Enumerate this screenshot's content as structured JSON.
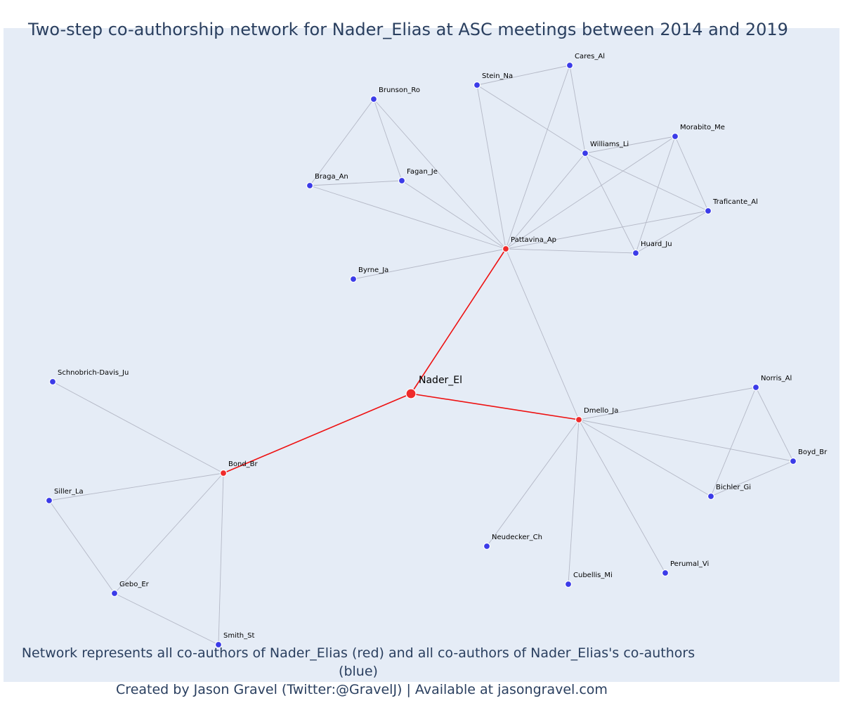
{
  "title": "Two-step co-authorship network for Nader_Elias at ASC meetings between 2014 and 2019",
  "footnote": {
    "line1": "Network represents all co-authors of Nader_Elias (red) and all co-authors of Nader_Elias's co-authors (blue)",
    "line2": "Created by Jason Gravel (Twitter:@GravelJ) | Available at jasongravel.com"
  },
  "colors": {
    "background": "#e5ecf6",
    "ego_node": "#ef2b2b",
    "coauthor_node": "#ef2b2b",
    "second_step_node": "#3b3be8",
    "ego_edge": "#ee1111",
    "other_edge": "#b4b8c6",
    "text": "#2a3f5f"
  },
  "nodes": [
    {
      "id": "Nader_El",
      "label": "Nader_El",
      "group": "ego"
    },
    {
      "id": "Pattavina_Ap",
      "label": "Pattavina_Ap",
      "group": "coauthor"
    },
    {
      "id": "Dmello_Ja",
      "label": "Dmello_Ja",
      "group": "coauthor"
    },
    {
      "id": "Bond_Br",
      "label": "Bond_Br",
      "group": "coauthor"
    },
    {
      "id": "Cares_Al",
      "label": "Cares_Al",
      "group": "second"
    },
    {
      "id": "Stein_Na",
      "label": "Stein_Na",
      "group": "second"
    },
    {
      "id": "Brunson_Ro",
      "label": "Brunson_Ro",
      "group": "second"
    },
    {
      "id": "Morabito_Me",
      "label": "Morabito_Me",
      "group": "second"
    },
    {
      "id": "Williams_Li",
      "label": "Williams_Li",
      "group": "second"
    },
    {
      "id": "Fagan_Je",
      "label": "Fagan_Je",
      "group": "second"
    },
    {
      "id": "Braga_An",
      "label": "Braga_An",
      "group": "second"
    },
    {
      "id": "Traficante_Al",
      "label": "Traficante_Al",
      "group": "second"
    },
    {
      "id": "Huard_Ju",
      "label": "Huard_Ju",
      "group": "second"
    },
    {
      "id": "Byrne_Ja",
      "label": "Byrne_Ja",
      "group": "second"
    },
    {
      "id": "Schnobrich-Davis_Ju",
      "label": "Schnobrich-Davis_Ju",
      "group": "second"
    },
    {
      "id": "Norris_Al",
      "label": "Norris_Al",
      "group": "second"
    },
    {
      "id": "Boyd_Br",
      "label": "Boyd_Br",
      "group": "second"
    },
    {
      "id": "Bichler_Gi",
      "label": "Bichler_Gi",
      "group": "second"
    },
    {
      "id": "Siller_La",
      "label": "Siller_La",
      "group": "second"
    },
    {
      "id": "Neudecker_Ch",
      "label": "Neudecker_Ch",
      "group": "second"
    },
    {
      "id": "Perumal_Vi",
      "label": "Perumal_Vi",
      "group": "second"
    },
    {
      "id": "Cubellis_Mi",
      "label": "Cubellis_Mi",
      "group": "second"
    },
    {
      "id": "Gebo_Er",
      "label": "Gebo_Er",
      "group": "second"
    },
    {
      "id": "Smith_St",
      "label": "Smith_St",
      "group": "second"
    }
  ],
  "edges": [
    [
      "Nader_El",
      "Pattavina_Ap"
    ],
    [
      "Nader_El",
      "Dmello_Ja"
    ],
    [
      "Nader_El",
      "Bond_Br"
    ],
    [
      "Pattavina_Ap",
      "Dmello_Ja"
    ],
    [
      "Pattavina_Ap",
      "Cares_Al"
    ],
    [
      "Pattavina_Ap",
      "Stein_Na"
    ],
    [
      "Pattavina_Ap",
      "Brunson_Ro"
    ],
    [
      "Pattavina_Ap",
      "Fagan_Je"
    ],
    [
      "Pattavina_Ap",
      "Braga_An"
    ],
    [
      "Pattavina_Ap",
      "Williams_Li"
    ],
    [
      "Pattavina_Ap",
      "Morabito_Me"
    ],
    [
      "Pattavina_Ap",
      "Traficante_Al"
    ],
    [
      "Pattavina_Ap",
      "Huard_Ju"
    ],
    [
      "Pattavina_Ap",
      "Byrne_Ja"
    ],
    [
      "Stein_Na",
      "Cares_Al"
    ],
    [
      "Stein_Na",
      "Williams_Li"
    ],
    [
      "Cares_Al",
      "Williams_Li"
    ],
    [
      "Brunson_Ro",
      "Braga_An"
    ],
    [
      "Brunson_Ro",
      "Fagan_Je"
    ],
    [
      "Braga_An",
      "Fagan_Je"
    ],
    [
      "Williams_Li",
      "Morabito_Me"
    ],
    [
      "Williams_Li",
      "Traficante_Al"
    ],
    [
      "Williams_Li",
      "Huard_Ju"
    ],
    [
      "Morabito_Me",
      "Traficante_Al"
    ],
    [
      "Morabito_Me",
      "Huard_Ju"
    ],
    [
      "Traficante_Al",
      "Huard_Ju"
    ],
    [
      "Dmello_Ja",
      "Norris_Al"
    ],
    [
      "Dmello_Ja",
      "Boyd_Br"
    ],
    [
      "Dmello_Ja",
      "Bichler_Gi"
    ],
    [
      "Dmello_Ja",
      "Neudecker_Ch"
    ],
    [
      "Dmello_Ja",
      "Cubellis_Mi"
    ],
    [
      "Dmello_Ja",
      "Perumal_Vi"
    ],
    [
      "Norris_Al",
      "Boyd_Br"
    ],
    [
      "Norris_Al",
      "Bichler_Gi"
    ],
    [
      "Boyd_Br",
      "Bichler_Gi"
    ],
    [
      "Bond_Br",
      "Schnobrich-Davis_Ju"
    ],
    [
      "Bond_Br",
      "Siller_La"
    ],
    [
      "Bond_Br",
      "Gebo_Er"
    ],
    [
      "Bond_Br",
      "Smith_St"
    ],
    [
      "Siller_La",
      "Gebo_Er"
    ],
    [
      "Gebo_Er",
      "Smith_St"
    ]
  ]
}
